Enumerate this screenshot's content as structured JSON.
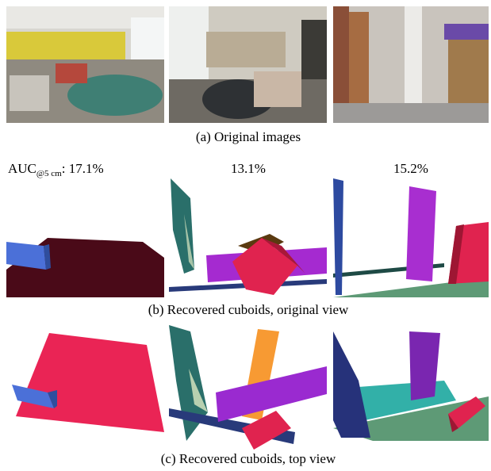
{
  "captions": {
    "a": "(a) Original images",
    "b": "(b) Recovered cuboids, original view",
    "c": "(c) Recovered cuboids, top view"
  },
  "auc": {
    "label": "AUC",
    "subscript": "@5 cm",
    "separator": ":"
  },
  "scores": [
    "17.1%",
    "13.1%",
    "15.2%"
  ]
}
